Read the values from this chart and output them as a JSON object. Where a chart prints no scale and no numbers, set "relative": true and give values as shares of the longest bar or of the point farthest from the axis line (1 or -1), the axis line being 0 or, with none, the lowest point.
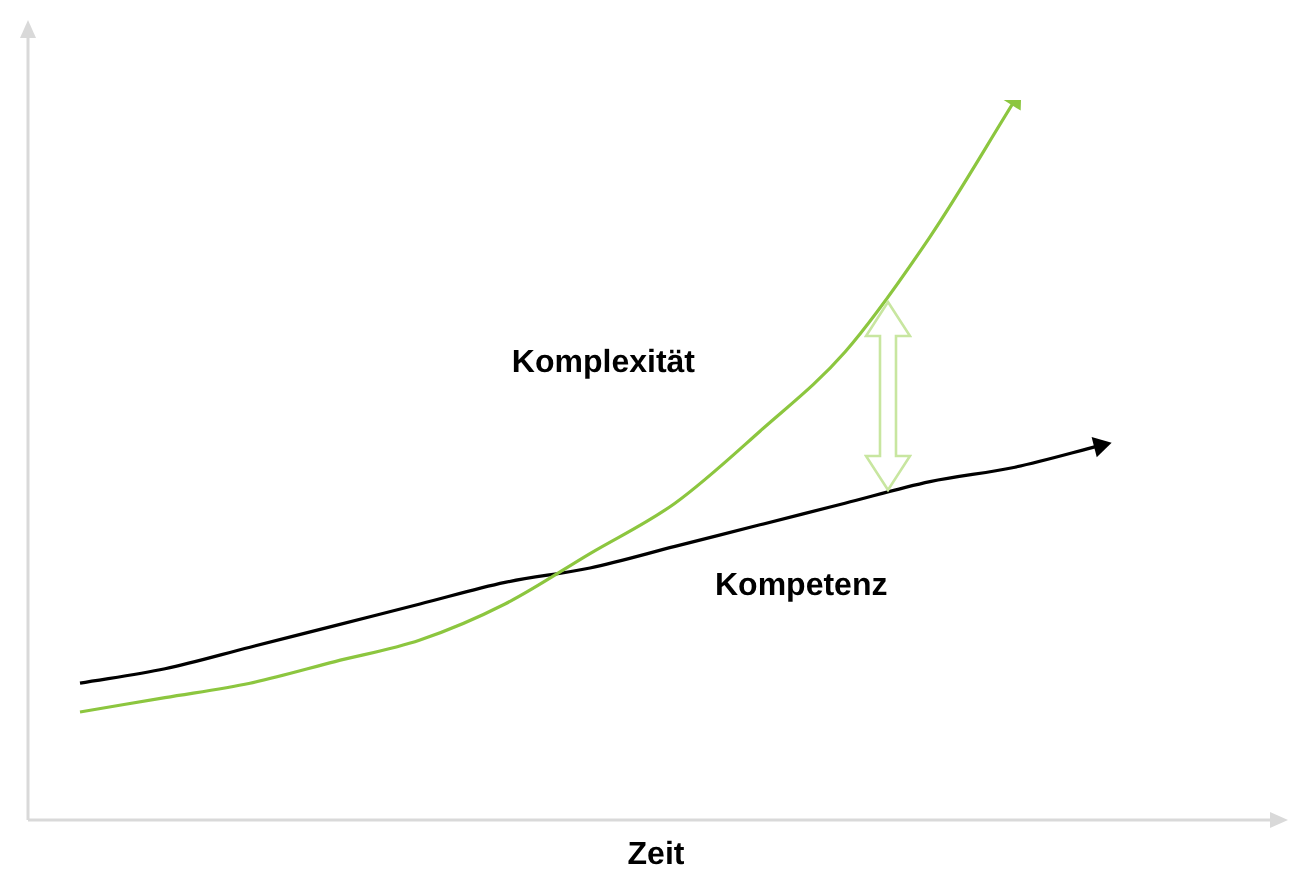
{
  "chart_data": {
    "type": "line",
    "relative": true,
    "xlabel": "Zeit",
    "legend": false,
    "grid": false,
    "marker": "none",
    "line_style": "solid",
    "categories": [
      null,
      null,
      null,
      null,
      null,
      null,
      null,
      null,
      null,
      null,
      null,
      null,
      null
    ],
    "series": [
      {
        "name": "Komplexität",
        "color": "#8cc63f",
        "values": [
          0.15,
          0.17,
          0.19,
          0.22,
          0.25,
          0.3,
          0.37,
          0.44,
          0.54,
          0.65,
          0.81,
          1.0,
          null
        ]
      },
      {
        "name": "Kompetenz",
        "color": "#000000",
        "values": [
          0.19,
          0.21,
          0.24,
          0.27,
          0.3,
          0.33,
          0.35,
          0.38,
          0.41,
          0.44,
          0.47,
          0.49,
          0.52
        ]
      }
    ]
  }
}
